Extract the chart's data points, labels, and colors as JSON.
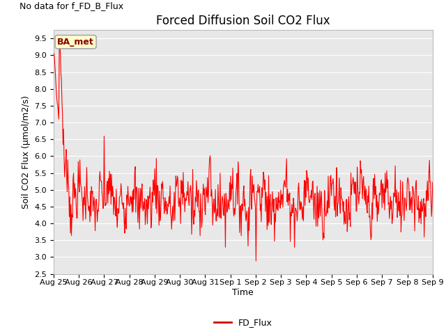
{
  "title": "Forced Diffusion Soil CO2 Flux",
  "no_data_text": "No data for f_FD_B_Flux",
  "xlabel": "Time",
  "ylabel": "Soil CO2 Flux (μmol/m2/s)",
  "ylim": [
    2.5,
    9.75
  ],
  "yticks": [
    2.5,
    3.0,
    3.5,
    4.0,
    4.5,
    5.0,
    5.5,
    6.0,
    6.5,
    7.0,
    7.5,
    8.0,
    8.5,
    9.0,
    9.5
  ],
  "xtick_labels": [
    "Aug 25",
    "Aug 26",
    "Aug 27",
    "Aug 28",
    "Aug 29",
    "Aug 30",
    "Aug 31",
    "Sep 1",
    "Sep 2",
    "Sep 3",
    "Sep 4",
    "Sep 5",
    "Sep 6",
    "Sep 7",
    "Sep 8",
    "Sep 9"
  ],
  "line_color": "#FF0000",
  "line_width": 0.8,
  "legend_label": "FD_Flux",
  "legend_line_color": "#CC0000",
  "ba_met_box_color": "#FFFFCC",
  "ba_met_edge_color": "#AAAAAA",
  "ba_met_text_color": "#880000",
  "axes_bg_color": "#E8E8E8",
  "grid_color": "#FFFFFF",
  "title_fontsize": 12,
  "axis_label_fontsize": 9,
  "tick_fontsize": 8,
  "no_data_fontsize": 9,
  "ba_met_fontsize": 9,
  "legend_fontsize": 9
}
